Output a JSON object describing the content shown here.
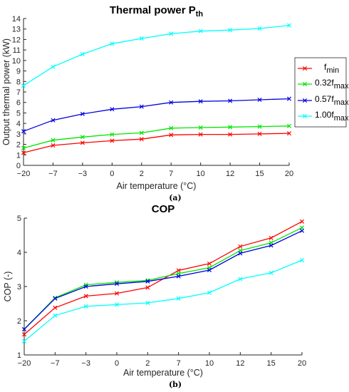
{
  "chart_data": [
    {
      "type": "line",
      "panel_label": "(a)",
      "title": "Thermal power P",
      "title_sub": "th",
      "xlabel": "Air temperature (°C)",
      "ylabel": "Output thermal power (kW)",
      "x": [
        -20,
        -7,
        -3,
        0,
        2,
        7,
        10,
        12,
        15,
        20
      ],
      "xtick_labels": [
        "−20",
        "−7",
        "−3",
        "0",
        "2",
        "7",
        "10",
        "12",
        "15",
        "20"
      ],
      "yticks": [
        0,
        1,
        2,
        3,
        4,
        5,
        6,
        7,
        8,
        9,
        10,
        11,
        12,
        13,
        14
      ],
      "ylim": [
        0,
        14
      ],
      "grid": false,
      "legend_position": "right",
      "series": [
        {
          "name_main": "f",
          "name_sub": "min",
          "color": "#ff0000",
          "values": [
            1.2,
            1.9,
            2.15,
            2.35,
            2.5,
            2.9,
            2.95,
            2.95,
            3.0,
            3.05
          ]
        },
        {
          "name_main": "0.32f",
          "name_sub": "max",
          "color": "#00e600",
          "values": [
            1.65,
            2.4,
            2.7,
            2.95,
            3.1,
            3.55,
            3.6,
            3.65,
            3.7,
            3.75
          ]
        },
        {
          "name_main": "0.57f",
          "name_sub": "max",
          "color": "#0000e0",
          "values": [
            3.25,
            4.3,
            4.9,
            5.35,
            5.6,
            6.0,
            6.1,
            6.15,
            6.25,
            6.35
          ]
        },
        {
          "name_main": "1.00f",
          "name_sub": "max",
          "color": "#00ffff",
          "values": [
            7.6,
            9.4,
            10.6,
            11.6,
            12.1,
            12.55,
            12.8,
            12.9,
            13.05,
            13.35
          ]
        }
      ]
    },
    {
      "type": "line",
      "panel_label": "(b)",
      "title": "COP",
      "xlabel": "Air temperature (°C)",
      "ylabel": "COP (-)",
      "x": [
        -20,
        -7,
        -3,
        0,
        2,
        7,
        10,
        12,
        15,
        20
      ],
      "xtick_labels": [
        "−20",
        "−7",
        "−3",
        "0",
        "2",
        "7",
        "10",
        "12",
        "15",
        "20"
      ],
      "yticks": [
        1,
        2,
        3,
        4,
        5
      ],
      "ylim": [
        1,
        5
      ],
      "grid": false,
      "series": [
        {
          "color": "#ff0000",
          "values": [
            1.6,
            2.38,
            2.72,
            2.8,
            2.97,
            3.47,
            3.67,
            4.17,
            4.42,
            4.9
          ]
        },
        {
          "color": "#00e600",
          "values": [
            1.75,
            2.67,
            3.05,
            3.12,
            3.18,
            3.38,
            3.55,
            4.05,
            4.28,
            4.72
          ]
        },
        {
          "color": "#0000e0",
          "values": [
            1.75,
            2.65,
            3.0,
            3.08,
            3.15,
            3.3,
            3.48,
            3.97,
            4.2,
            4.63
          ]
        },
        {
          "color": "#00ffff",
          "values": [
            1.4,
            2.15,
            2.42,
            2.47,
            2.52,
            2.65,
            2.82,
            3.22,
            3.4,
            3.77
          ]
        }
      ]
    }
  ]
}
